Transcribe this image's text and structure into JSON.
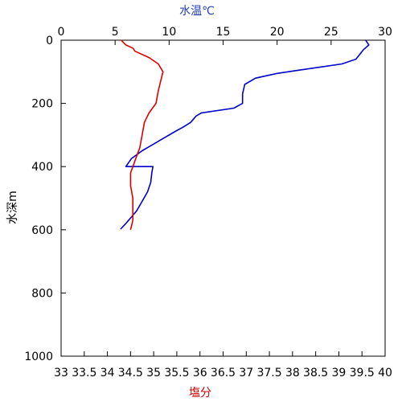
{
  "chart_data": {
    "type": "line",
    "top_axis_label": "水温℃",
    "bottom_axis_label": "塩分",
    "y_axis_label": "水深m",
    "y_axis": {
      "range": [
        0,
        1000
      ],
      "ticks": [
        0,
        200,
        400,
        600,
        800,
        1000
      ],
      "inverted": true
    },
    "top_axis": {
      "range": [
        0,
        30
      ],
      "ticks": [
        0,
        5,
        10,
        15,
        20,
        25,
        30
      ]
    },
    "bottom_axis": {
      "range": [
        33,
        40
      ],
      "ticks": [
        "33",
        "33.5",
        "34",
        "34.5",
        "35",
        "35.5",
        "36",
        "36.5",
        "37",
        "37.5",
        "38",
        "38.5",
        "39",
        "39.5",
        "40"
      ]
    },
    "grid": false,
    "series": [
      {
        "axis": "top",
        "color": "#0000cc",
        "points": [
          [
            28.2,
            0
          ],
          [
            28.5,
            15
          ],
          [
            28,
            30
          ],
          [
            27.3,
            60
          ],
          [
            26,
            75
          ],
          [
            24,
            85
          ],
          [
            22,
            95
          ],
          [
            20,
            105
          ],
          [
            18,
            120
          ],
          [
            17,
            140
          ],
          [
            16.8,
            170
          ],
          [
            16.8,
            200
          ],
          [
            16,
            215
          ],
          [
            13,
            230
          ],
          [
            12.5,
            240
          ],
          [
            12,
            260
          ],
          [
            11.3,
            275
          ],
          [
            10.5,
            290
          ],
          [
            9.5,
            310
          ],
          [
            8.5,
            330
          ],
          [
            7.5,
            350
          ],
          [
            6.5,
            375
          ],
          [
            6,
            400
          ],
          [
            8.5,
            400
          ],
          [
            8.4,
            420
          ],
          [
            8.3,
            450
          ],
          [
            8,
            480
          ],
          [
            7.5,
            510
          ],
          [
            7,
            540
          ],
          [
            6.5,
            560
          ],
          [
            6,
            580
          ],
          [
            5.5,
            598
          ]
        ]
      },
      {
        "axis": "bottom",
        "color": "#dd0000",
        "points": [
          [
            34.3,
            0
          ],
          [
            34.4,
            15
          ],
          [
            34.55,
            25
          ],
          [
            34.6,
            35
          ],
          [
            34.9,
            55
          ],
          [
            35.1,
            75
          ],
          [
            35.2,
            100
          ],
          [
            35.15,
            130
          ],
          [
            35.1,
            160
          ],
          [
            35.05,
            200
          ],
          [
            34.9,
            230
          ],
          [
            34.8,
            260
          ],
          [
            34.75,
            300
          ],
          [
            34.7,
            340
          ],
          [
            34.6,
            380
          ],
          [
            34.5,
            420
          ],
          [
            34.5,
            460
          ],
          [
            34.55,
            500
          ],
          [
            34.55,
            540
          ],
          [
            34.55,
            570
          ],
          [
            34.5,
            600
          ]
        ]
      }
    ]
  }
}
